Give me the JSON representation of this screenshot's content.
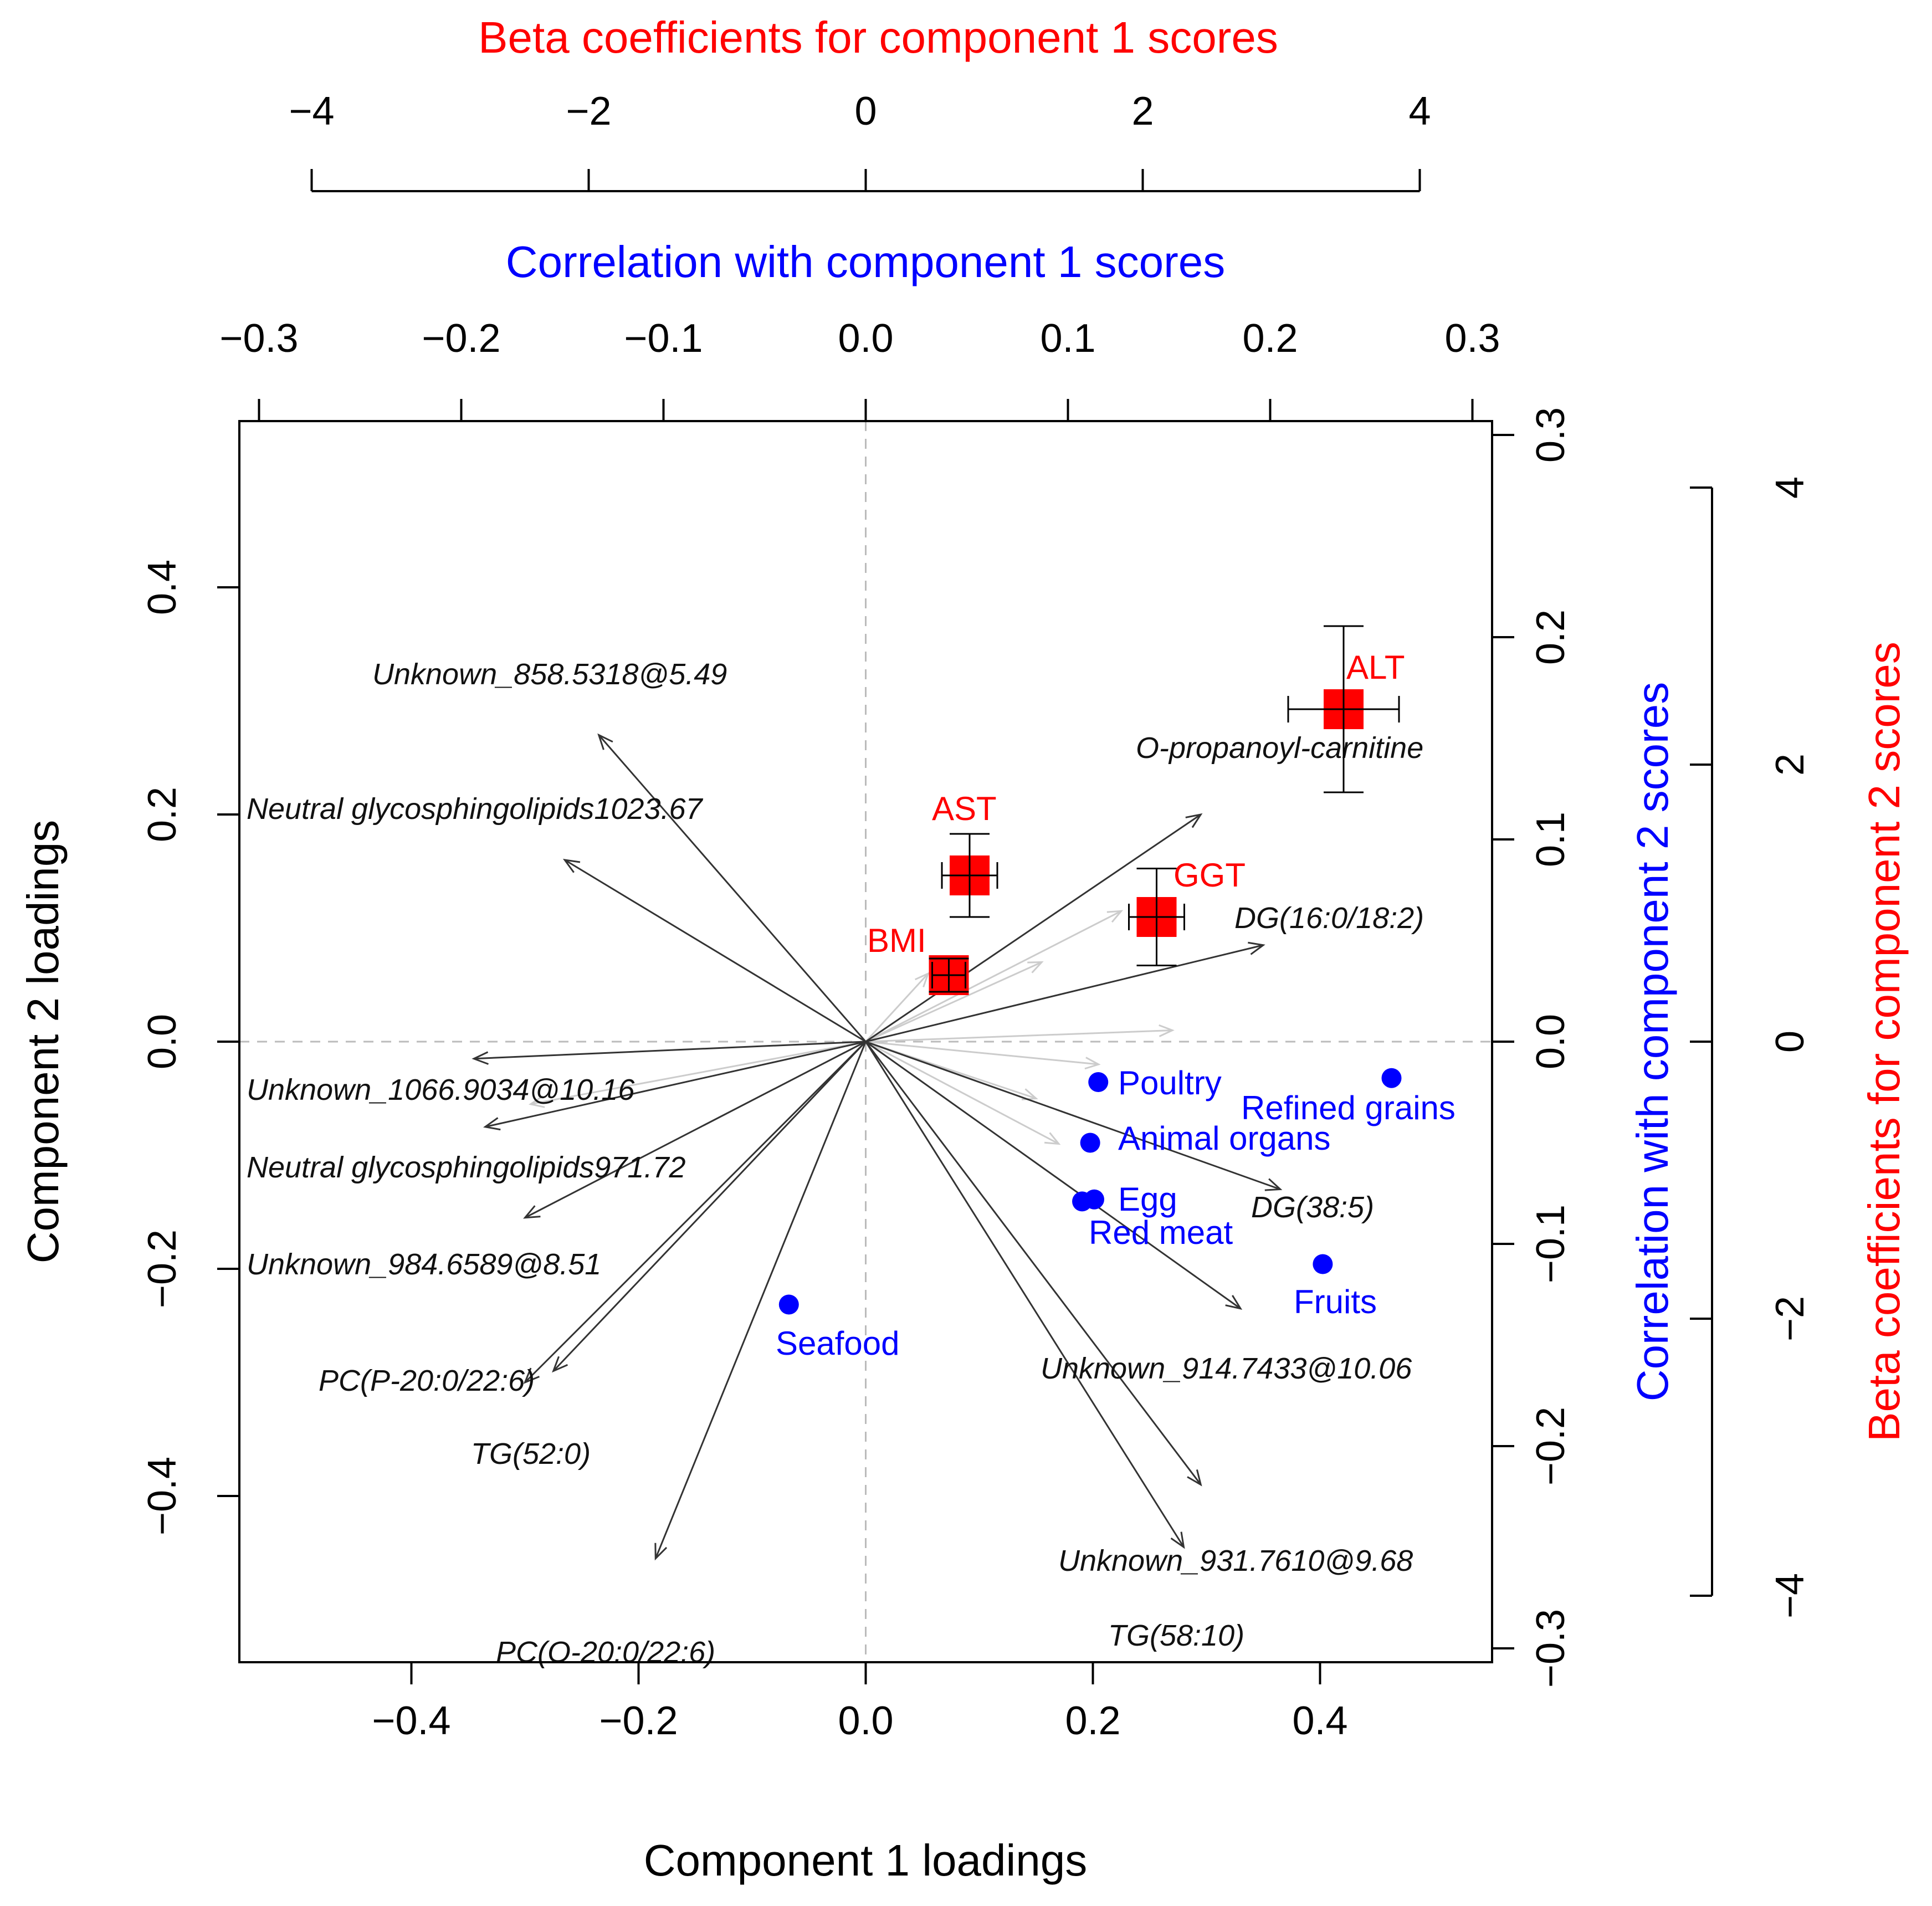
{
  "chart_data": {
    "type": "scatter",
    "subtype": "pls-biplot",
    "axes": {
      "bottom": {
        "label": "Component 1 loadings",
        "range": [
          -0.5,
          0.5
        ],
        "ticks": [
          "−0.4",
          "−0.2",
          "0.0",
          "0.2",
          "0.4"
        ],
        "tick_values": [
          -0.4,
          -0.2,
          0.0,
          0.2,
          0.4
        ],
        "color": "#000000"
      },
      "left": {
        "label": "Component 2 loadings",
        "range": [
          -0.49,
          0.49
        ],
        "ticks": [
          "−0.4",
          "−0.2",
          "0.0",
          "0.2",
          "0.4"
        ],
        "tick_values": [
          -0.4,
          -0.2,
          0.0,
          0.2,
          0.4
        ],
        "color": "#000000"
      },
      "top_inner": {
        "label": "Correlation with component 1 scores",
        "range": [
          -0.3,
          0.3
        ],
        "ticks": [
          "−0.3",
          "−0.2",
          "−0.1",
          "0.0",
          "0.1",
          "0.2",
          "0.3"
        ],
        "tick_values": [
          -0.3,
          -0.2,
          -0.1,
          0.0,
          0.1,
          0.2,
          0.3
        ],
        "color": "#0000ff"
      },
      "right_inner": {
        "label": "Correlation with component 2 scores",
        "range": [
          -0.3,
          0.3
        ],
        "ticks": [
          "−0.3",
          "−0.2",
          "−0.1",
          "0.0",
          "0.1",
          "0.2",
          "0.3"
        ],
        "tick_values": [
          -0.3,
          -0.2,
          -0.1,
          0.0,
          0.1,
          0.2,
          0.3
        ],
        "color": "#0000ff"
      },
      "top_outer": {
        "label": "Beta coefficients for component 1 scores",
        "range": [
          -4,
          4
        ],
        "ticks": [
          "−4",
          "−2",
          "0",
          "2",
          "4"
        ],
        "tick_values": [
          -4,
          -2,
          0,
          2,
          4
        ],
        "color": "#ff0000"
      },
      "right_outer": {
        "label": "Beta coefficients for component 2 scores",
        "range": [
          -4,
          4
        ],
        "ticks": [
          "−4",
          "−2",
          "0",
          "2",
          "4"
        ],
        "tick_values": [
          -4,
          -2,
          0,
          2,
          4
        ],
        "color": "#ff0000"
      }
    },
    "reference_lines": {
      "x": 0,
      "y": 0,
      "style": "dashed",
      "color": "#bbbbbb"
    },
    "loading_vectors": [
      {
        "label": "Unknown_858.5318@5.49",
        "x": -0.235,
        "y": 0.27
      },
      {
        "label": "Neutral glycosphingolipids1023.67",
        "x": -0.265,
        "y": 0.16
      },
      {
        "label": "Unknown_1066.9034@10.16",
        "x": -0.345,
        "y": -0.015
      },
      {
        "label": "Neutral glycosphingolipids971.72",
        "x": -0.335,
        "y": -0.075
      },
      {
        "label": "Unknown_984.6589@8.51",
        "x": -0.3,
        "y": -0.155
      },
      {
        "label": "PC(P-20:0/22:6)",
        "x": -0.275,
        "y": -0.29
      },
      {
        "label": "TG(52:0)",
        "x": -0.3,
        "y": -0.3
      },
      {
        "label": "PC(O-20:0/22:6)",
        "x": -0.185,
        "y": -0.455
      },
      {
        "label": "O-propanoyl-carnitine",
        "x": 0.295,
        "y": 0.2
      },
      {
        "label": "DG(16:0/18:2)",
        "x": 0.35,
        "y": 0.085
      },
      {
        "label": "DG(38:5)",
        "x": 0.365,
        "y": -0.13
      },
      {
        "label": "Unknown_914.7433@10.06",
        "x": 0.33,
        "y": -0.235
      },
      {
        "label": "Unknown_931.7610@9.68",
        "x": 0.295,
        "y": -0.39
      },
      {
        "label": "TG(58:10)",
        "x": 0.28,
        "y": -0.445
      }
    ],
    "faint_vectors": [
      {
        "x": 0.225,
        "y": 0.115
      },
      {
        "x": 0.155,
        "y": 0.07
      },
      {
        "x": 0.27,
        "y": 0.01
      },
      {
        "x": 0.205,
        "y": -0.02
      },
      {
        "x": 0.15,
        "y": -0.05
      },
      {
        "x": 0.17,
        "y": -0.09
      },
      {
        "x": 0.055,
        "y": 0.06
      },
      {
        "x": -0.295,
        "y": -0.055
      }
    ],
    "food_groups": [
      {
        "label": "Poultry",
        "x": 0.115,
        "y": -0.02
      },
      {
        "label": "Refined grains",
        "x": 0.26,
        "y": -0.018
      },
      {
        "label": "Animal organs",
        "x": 0.111,
        "y": -0.05
      },
      {
        "label": "Egg",
        "x": 0.113,
        "y": -0.078
      },
      {
        "label": "Red meat",
        "x": 0.107,
        "y": -0.079
      },
      {
        "label": "Fruits",
        "x": 0.226,
        "y": -0.11
      },
      {
        "label": "Seafood",
        "x": -0.038,
        "y": -0.13
      }
    ],
    "outcomes": [
      {
        "label": "ALT",
        "x": 3.45,
        "y": 2.4,
        "x_err": 0.4,
        "y_err": 0.6
      },
      {
        "label": "AST",
        "x": 0.75,
        "y": 1.2,
        "x_err": 0.2,
        "y_err": 0.3
      },
      {
        "label": "GGT",
        "x": 2.1,
        "y": 0.9,
        "x_err": 0.2,
        "y_err": 0.35
      },
      {
        "label": "BMI",
        "x": 0.6,
        "y": 0.48,
        "x_err": 0.12,
        "y_err": 0.12
      }
    ],
    "colors": {
      "vectors": "#333333",
      "faint": "#cccccc",
      "food": "#0000ff",
      "outcome": "#ff0000",
      "axis": "#000000"
    }
  }
}
